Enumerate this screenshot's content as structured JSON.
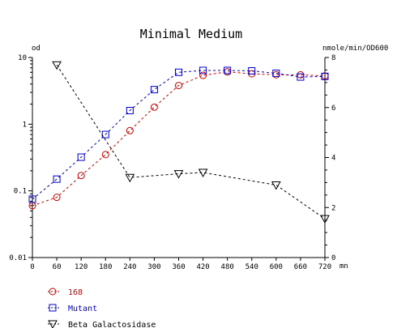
{
  "chart_data": {
    "type": "line",
    "title": "Minimal Medium",
    "y_left_label": "od",
    "y_right_label": "nmole/min/OD600",
    "x_unit": "mn",
    "x_ticks": [
      "0",
      "60",
      "120",
      "180",
      "240",
      "300",
      "360",
      "420",
      "480",
      "540",
      "600",
      "660",
      "720"
    ],
    "xlim": [
      0,
      720
    ],
    "y_left": {
      "scale": "log",
      "lim": [
        0.01,
        10
      ],
      "ticks": [
        "0.01",
        "0.1",
        "1",
        "10"
      ]
    },
    "y_right": {
      "scale": "linear",
      "lim": [
        0,
        8
      ],
      "ticks": [
        "0",
        "2",
        "4",
        "6",
        "8"
      ]
    },
    "grid": false,
    "legend_position": "bottom-left",
    "series": [
      {
        "name": "168",
        "axis": "left",
        "color": "#cc0000",
        "marker": "circle",
        "x": [
          0,
          60,
          120,
          180,
          240,
          300,
          360,
          420,
          480,
          540,
          600,
          660,
          720
        ],
        "y": [
          0.06,
          0.08,
          0.17,
          0.35,
          0.8,
          1.8,
          3.8,
          5.4,
          6.1,
          5.7,
          5.5,
          5.5,
          5.3
        ]
      },
      {
        "name": "Mutant",
        "axis": "left",
        "color": "#0000cc",
        "marker": "square",
        "x": [
          0,
          60,
          120,
          180,
          240,
          300,
          360,
          420,
          480,
          540,
          600,
          660,
          720
        ],
        "y": [
          0.075,
          0.15,
          0.32,
          0.7,
          1.6,
          3.3,
          6.0,
          6.4,
          6.4,
          6.3,
          5.8,
          5.1,
          5.2
        ]
      },
      {
        "name": "Beta Galactosidase",
        "axis": "right",
        "color": "#000000",
        "marker": "triangle-down",
        "x": [
          60,
          240,
          360,
          420,
          600,
          720
        ],
        "y": [
          7.7,
          3.2,
          3.35,
          3.4,
          2.9,
          1.55
        ]
      }
    ]
  }
}
